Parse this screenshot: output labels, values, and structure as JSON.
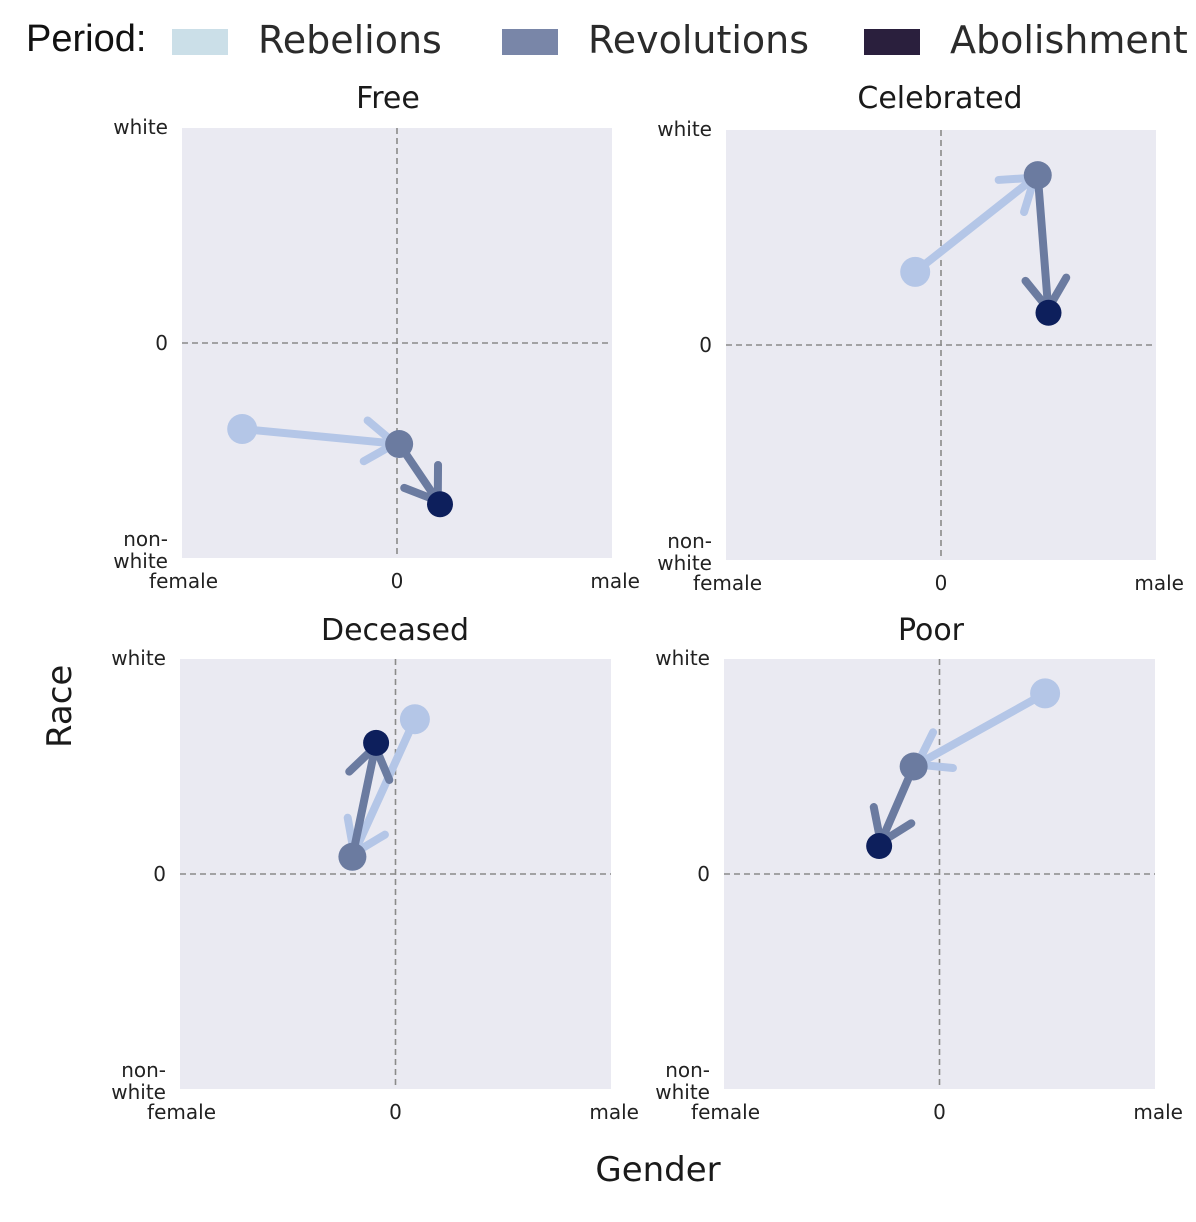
{
  "legend": {
    "title": "Period:",
    "entries": [
      {
        "label": "Rebelions",
        "color": "#cbdfe8"
      },
      {
        "label": "Revolutions",
        "color": "#7986a8"
      },
      {
        "label": "Abolishment",
        "color": "#2a1f3d"
      }
    ]
  },
  "axes_common": {
    "x_label": "Gender",
    "y_label": "Race",
    "x_tick_left": "female",
    "x_tick_mid": "0",
    "x_tick_right": "male",
    "y_tick_top": "white",
    "y_tick_mid": "0",
    "y_tick_bottom_1": "non-",
    "y_tick_bottom_2": "white"
  },
  "colors": {
    "rebelions_point": "#b4c6e7",
    "revolutions_point": "#6b7ba0",
    "abolishment_point": "#0d1f5c",
    "panel_bg": "#eaeaf2",
    "zero_line": "#8a8a8a"
  },
  "chart_data": [
    {
      "type": "scatter",
      "title": "Free",
      "xlabel": "Gender",
      "ylabel": "Race",
      "xlim": [
        -1,
        1
      ],
      "ylim": [
        -1,
        1
      ],
      "series": [
        {
          "name": "Rebelions",
          "x": -0.72,
          "y": -0.4
        },
        {
          "name": "Revolutions",
          "x": 0.01,
          "y": -0.47
        },
        {
          "name": "Abolishment",
          "x": 0.2,
          "y": -0.75
        }
      ]
    },
    {
      "type": "scatter",
      "title": "Celebrated",
      "xlabel": "Gender",
      "ylabel": "Race",
      "xlim": [
        -1,
        1
      ],
      "ylim": [
        -1,
        1
      ],
      "series": [
        {
          "name": "Rebelions",
          "x": -0.12,
          "y": 0.34
        },
        {
          "name": "Revolutions",
          "x": 0.45,
          "y": 0.79
        },
        {
          "name": "Abolishment",
          "x": 0.5,
          "y": 0.15
        }
      ]
    },
    {
      "type": "scatter",
      "title": "Deceased",
      "xlabel": "Gender",
      "ylabel": "Race",
      "xlim": [
        -1,
        1
      ],
      "ylim": [
        -1,
        1
      ],
      "series": [
        {
          "name": "Rebelions",
          "x": 0.09,
          "y": 0.72
        },
        {
          "name": "Revolutions",
          "x": -0.2,
          "y": 0.08
        },
        {
          "name": "Abolishment",
          "x": -0.09,
          "y": 0.61
        }
      ]
    },
    {
      "type": "scatter",
      "title": "Poor",
      "xlabel": "Gender",
      "ylabel": "Race",
      "xlim": [
        -1,
        1
      ],
      "ylim": [
        -1,
        1
      ],
      "series": [
        {
          "name": "Rebelions",
          "x": 0.49,
          "y": 0.84
        },
        {
          "name": "Revolutions",
          "x": -0.12,
          "y": 0.5
        },
        {
          "name": "Abolishment",
          "x": -0.28,
          "y": 0.13
        }
      ]
    }
  ]
}
